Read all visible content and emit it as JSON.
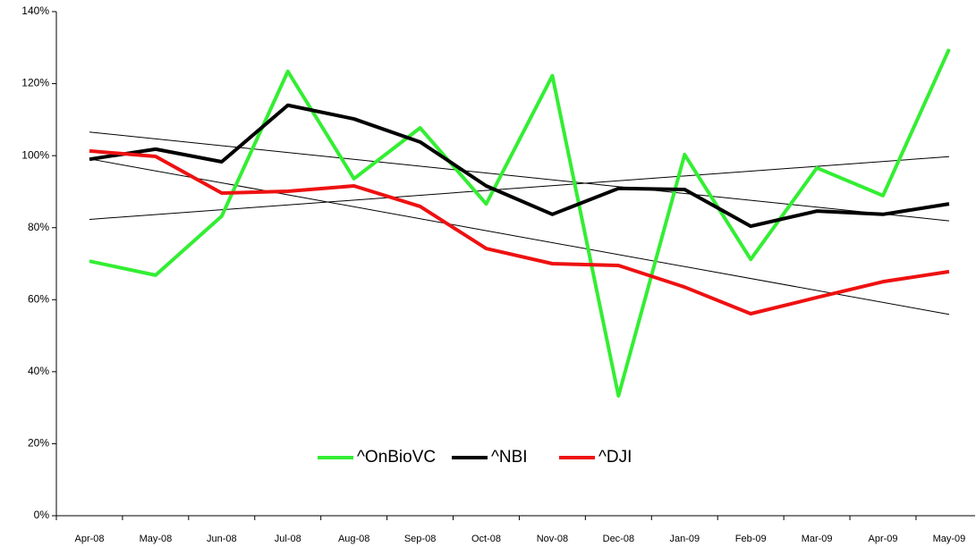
{
  "chart_data": {
    "type": "line",
    "categories": [
      "Apr-08",
      "May-08",
      "Jun-08",
      "Jul-08",
      "Aug-08",
      "Sep-08",
      "Oct-08",
      "Nov-08",
      "Dec-08",
      "Jan-09",
      "Feb-09",
      "Mar-09",
      "Apr-09",
      "May-09"
    ],
    "series": [
      {
        "name": "^OnBioVC",
        "color": "#33ee33",
        "values": [
          70.7,
          66.8,
          83.2,
          123.4,
          93.6,
          107.7,
          86.6,
          122.2,
          33.3,
          100.3,
          71.2,
          96.6,
          88.9,
          129.6
        ]
      },
      {
        "name": "^NBI",
        "color": "#000000",
        "values": [
          99.0,
          101.8,
          98.3,
          114.0,
          110.2,
          103.8,
          91.6,
          83.7,
          90.9,
          90.6,
          80.4,
          84.6,
          83.7,
          86.6
        ]
      },
      {
        "name": "^DJI",
        "color": "#ee1111",
        "values": [
          101.3,
          99.8,
          89.6,
          90.1,
          91.6,
          85.9,
          74.2,
          70.0,
          69.5,
          63.5,
          56.1,
          60.6,
          65.0,
          67.8
        ]
      }
    ],
    "ylim": [
      0,
      140
    ],
    "yticks": [
      {
        "value": 0,
        "label": "0%"
      },
      {
        "value": 20,
        "label": "20%"
      },
      {
        "value": 40,
        "label": "40%"
      },
      {
        "value": 60,
        "label": "60%"
      },
      {
        "value": 80,
        "label": "80%"
      },
      {
        "value": 100,
        "label": "100%"
      },
      {
        "value": 120,
        "label": "120%"
      },
      {
        "value": 140,
        "label": "140%"
      }
    ],
    "trendlines": true,
    "grid": false,
    "legend": "bottom"
  }
}
